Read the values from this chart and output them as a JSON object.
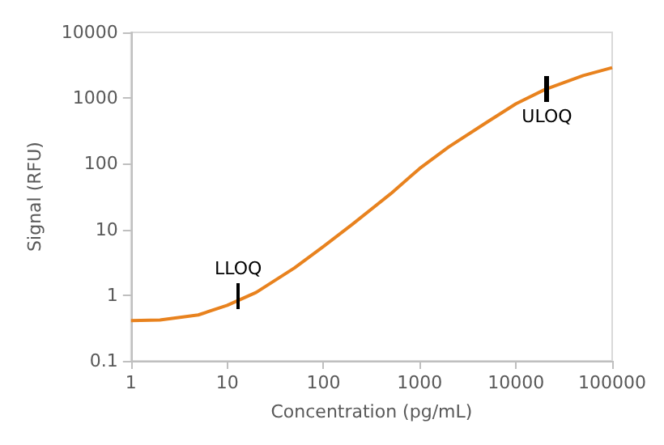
{
  "chart_data": {
    "type": "line",
    "xlabel": "Concentration (pg/mL)",
    "ylabel": "Signal (RFU)",
    "x": [
      1,
      2,
      5,
      10,
      20,
      50,
      100,
      200,
      500,
      1000,
      2000,
      5000,
      10000,
      20000,
      50000,
      100000
    ],
    "series": [
      {
        "color": "#e8821e",
        "values": [
          0.41,
          0.42,
          0.5,
          0.7,
          1.1,
          2.6,
          5.5,
          12,
          35,
          85,
          180,
          430,
          820,
          1350,
          2200,
          2900
        ]
      }
    ],
    "log": "xy",
    "xlim": [
      1,
      100000
    ],
    "ylim": [
      0.1,
      10000
    ],
    "xticks": [
      1,
      10,
      100,
      1000,
      10000,
      100000
    ],
    "yticks": [
      0.1,
      1,
      10,
      100,
      1000,
      10000
    ],
    "grid": false,
    "marker": "none",
    "line_style": "solid",
    "annotations": [
      {
        "text": "LLOQ",
        "x": 13,
        "y": 0.95
      },
      {
        "text": "ULOQ",
        "x": 21000,
        "y": 1400
      }
    ]
  }
}
